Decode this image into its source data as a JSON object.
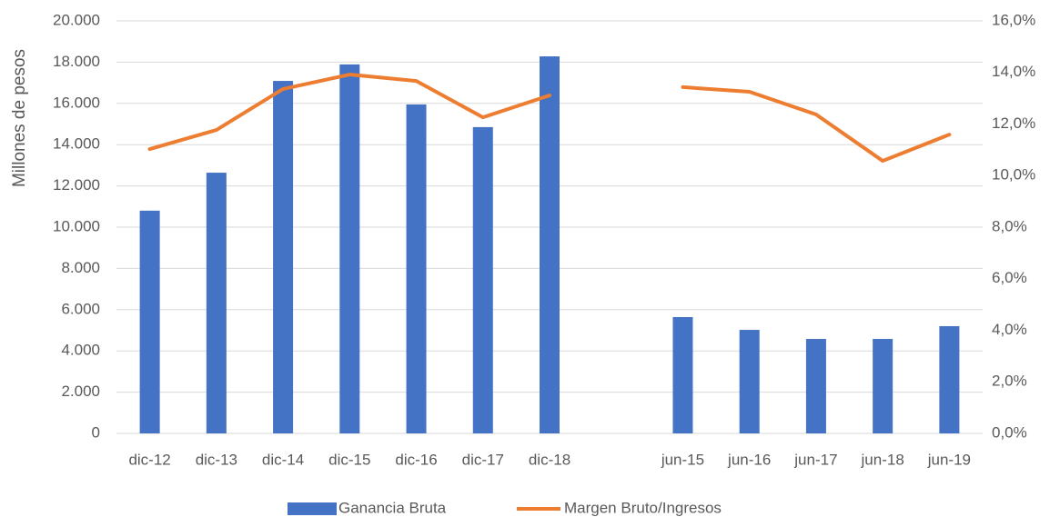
{
  "chart_data": {
    "type": "bar_line",
    "y_axis_label": "Millones de pesos",
    "categories": [
      "dic-12",
      "dic-13",
      "dic-14",
      "dic-15",
      "dic-16",
      "dic-17",
      "dic-18",
      null,
      "jun-15",
      "jun-16",
      "jun-17",
      "jun-18",
      "jun-19"
    ],
    "series": [
      {
        "name": "Ganancia Bruta",
        "type": "bar",
        "color": "#4472c4",
        "axis": "y",
        "values": [
          10800,
          12640,
          17090,
          17890,
          15950,
          14850,
          18280,
          null,
          5640,
          5020,
          4580,
          4580,
          5200
        ]
      },
      {
        "name": "Margen Bruto/Ingresos",
        "type": "line",
        "color": "#ed7d31",
        "axis": "y2",
        "values": [
          11.03,
          11.77,
          13.36,
          13.92,
          13.67,
          12.26,
          13.11,
          null,
          13.43,
          13.25,
          12.37,
          10.57,
          11.59
        ]
      }
    ],
    "ylim": [
      0,
      20000
    ],
    "yticks": [
      {
        "value": 0,
        "label": "0"
      },
      {
        "value": 2000,
        "label": "2.000"
      },
      {
        "value": 4000,
        "label": "4.000"
      },
      {
        "value": 6000,
        "label": "6.000"
      },
      {
        "value": 8000,
        "label": "8.000"
      },
      {
        "value": 10000,
        "label": "10.000"
      },
      {
        "value": 12000,
        "label": "12.000"
      },
      {
        "value": 14000,
        "label": "14.000"
      },
      {
        "value": 16000,
        "label": "16.000"
      },
      {
        "value": 18000,
        "label": "18.000"
      },
      {
        "value": 20000,
        "label": "20.000"
      }
    ],
    "y2lim": [
      0,
      16
    ],
    "y2ticks": [
      {
        "value": 0,
        "label": "0,0%"
      },
      {
        "value": 2,
        "label": "2,0%"
      },
      {
        "value": 4,
        "label": "4,0%"
      },
      {
        "value": 6,
        "label": "6,0%"
      },
      {
        "value": 8,
        "label": "8,0%"
      },
      {
        "value": 10,
        "label": "10,0%"
      },
      {
        "value": 12,
        "label": "12,0%"
      },
      {
        "value": 14,
        "label": "14,0%"
      },
      {
        "value": 16,
        "label": "16,0%"
      }
    ],
    "grid": true,
    "legend": "bottom"
  }
}
